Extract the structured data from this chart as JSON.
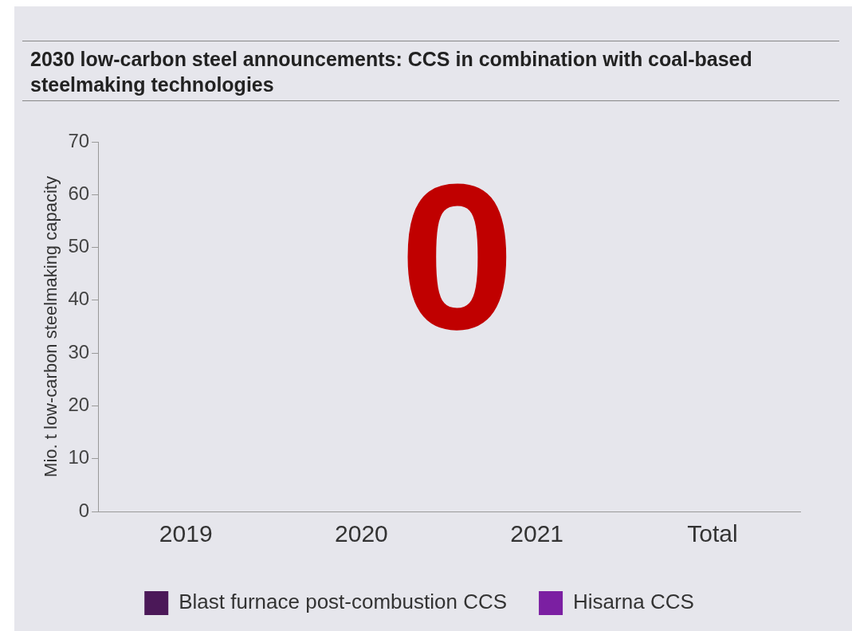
{
  "chart_data": {
    "type": "bar",
    "title": "2030 low-carbon steel announcements: CCS in combination with coal-based steelmaking technologies",
    "ylabel": "Mio. t low-carbon steelmaking capacity",
    "categories": [
      "2019",
      "2020",
      "2021",
      "Total"
    ],
    "series": [
      {
        "name": "Blast furnace post-combustion CCS",
        "color": "#4b1858",
        "values": [
          0,
          0,
          0,
          0
        ]
      },
      {
        "name": "Hisarna CCS",
        "color": "#7b1fa2",
        "values": [
          0,
          0,
          0,
          0
        ]
      }
    ],
    "ylim": [
      0,
      70
    ],
    "yticks": [
      0,
      10,
      20,
      30,
      40,
      50,
      60,
      70
    ],
    "grid": false,
    "legend": "bottom",
    "annotations": [
      "0"
    ]
  }
}
